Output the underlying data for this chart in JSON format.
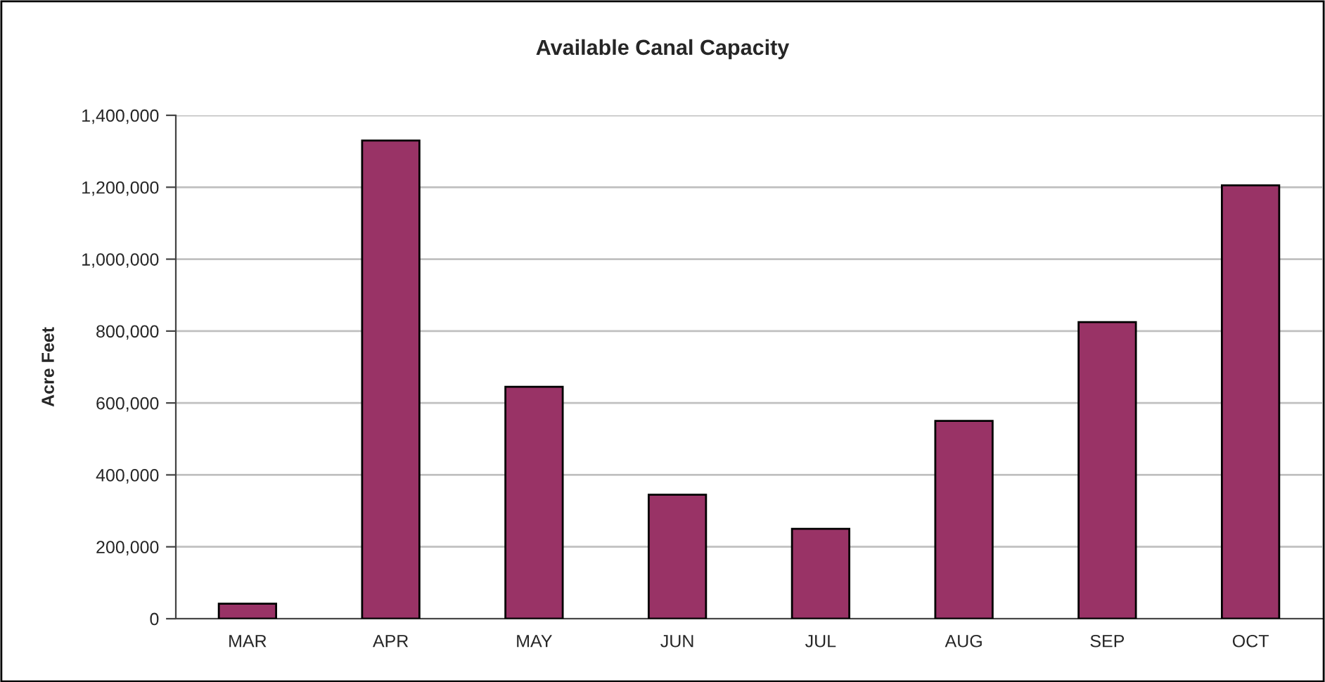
{
  "chart_data": {
    "type": "bar",
    "title": "Available Canal Capacity",
    "ylabel": "Acre Feet",
    "categories": [
      "MAR",
      "APR",
      "MAY",
      "JUN",
      "JUL",
      "AUG",
      "SEP",
      "OCT"
    ],
    "values": [
      42000,
      1330000,
      645000,
      345000,
      250000,
      550000,
      825000,
      1205000
    ],
    "color": "#993366",
    "ylim": [
      0,
      1400000
    ],
    "yticks": [
      {
        "value": 0,
        "label": "0"
      },
      {
        "value": 200000,
        "label": "200,000"
      },
      {
        "value": 400000,
        "label": "400,000"
      },
      {
        "value": 600000,
        "label": "600,000"
      },
      {
        "value": 800000,
        "label": "800,000"
      },
      {
        "value": 1000000,
        "label": "1,000,000"
      },
      {
        "value": 1200000,
        "label": "1,200,000"
      },
      {
        "value": 1400000,
        "label": "1,400,000"
      }
    ],
    "grid": "y",
    "legend": false
  }
}
